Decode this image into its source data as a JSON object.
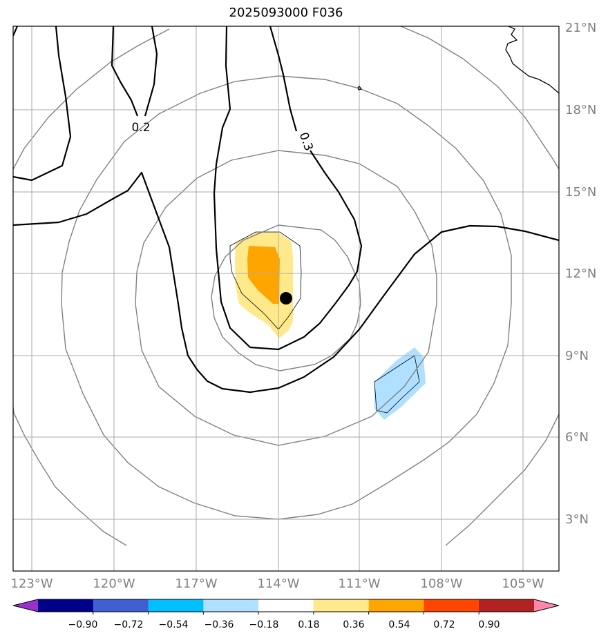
{
  "title": "2025093000 F036",
  "map": {
    "lon_ticks": [
      "123°W",
      "120°W",
      "117°W",
      "114°W",
      "111°W",
      "108°W",
      "105°W"
    ],
    "lat_ticks": [
      "21°N",
      "18°N",
      "15°N",
      "12°N",
      "9°N",
      "6°N",
      "3°N"
    ],
    "contour_labels": [
      "0.2",
      "0.3"
    ],
    "storm_center": "black-dot",
    "gridline_color": "#aaaaaa",
    "range_ring_color": "#808080"
  },
  "colorbar": {
    "labels": [
      "−0.90",
      "−0.72",
      "−0.54",
      "−0.36",
      "−0.18",
      "0.18",
      "0.36",
      "0.54",
      "0.72",
      "0.90"
    ],
    "colors": [
      "#9932cc",
      "#00008b",
      "#3f5fd2",
      "#00bfff",
      "#b0e0ff",
      "#ffffff",
      "#ffe98a",
      "#ffa500",
      "#ff4500",
      "#b22222",
      "#ff88aa"
    ]
  }
}
